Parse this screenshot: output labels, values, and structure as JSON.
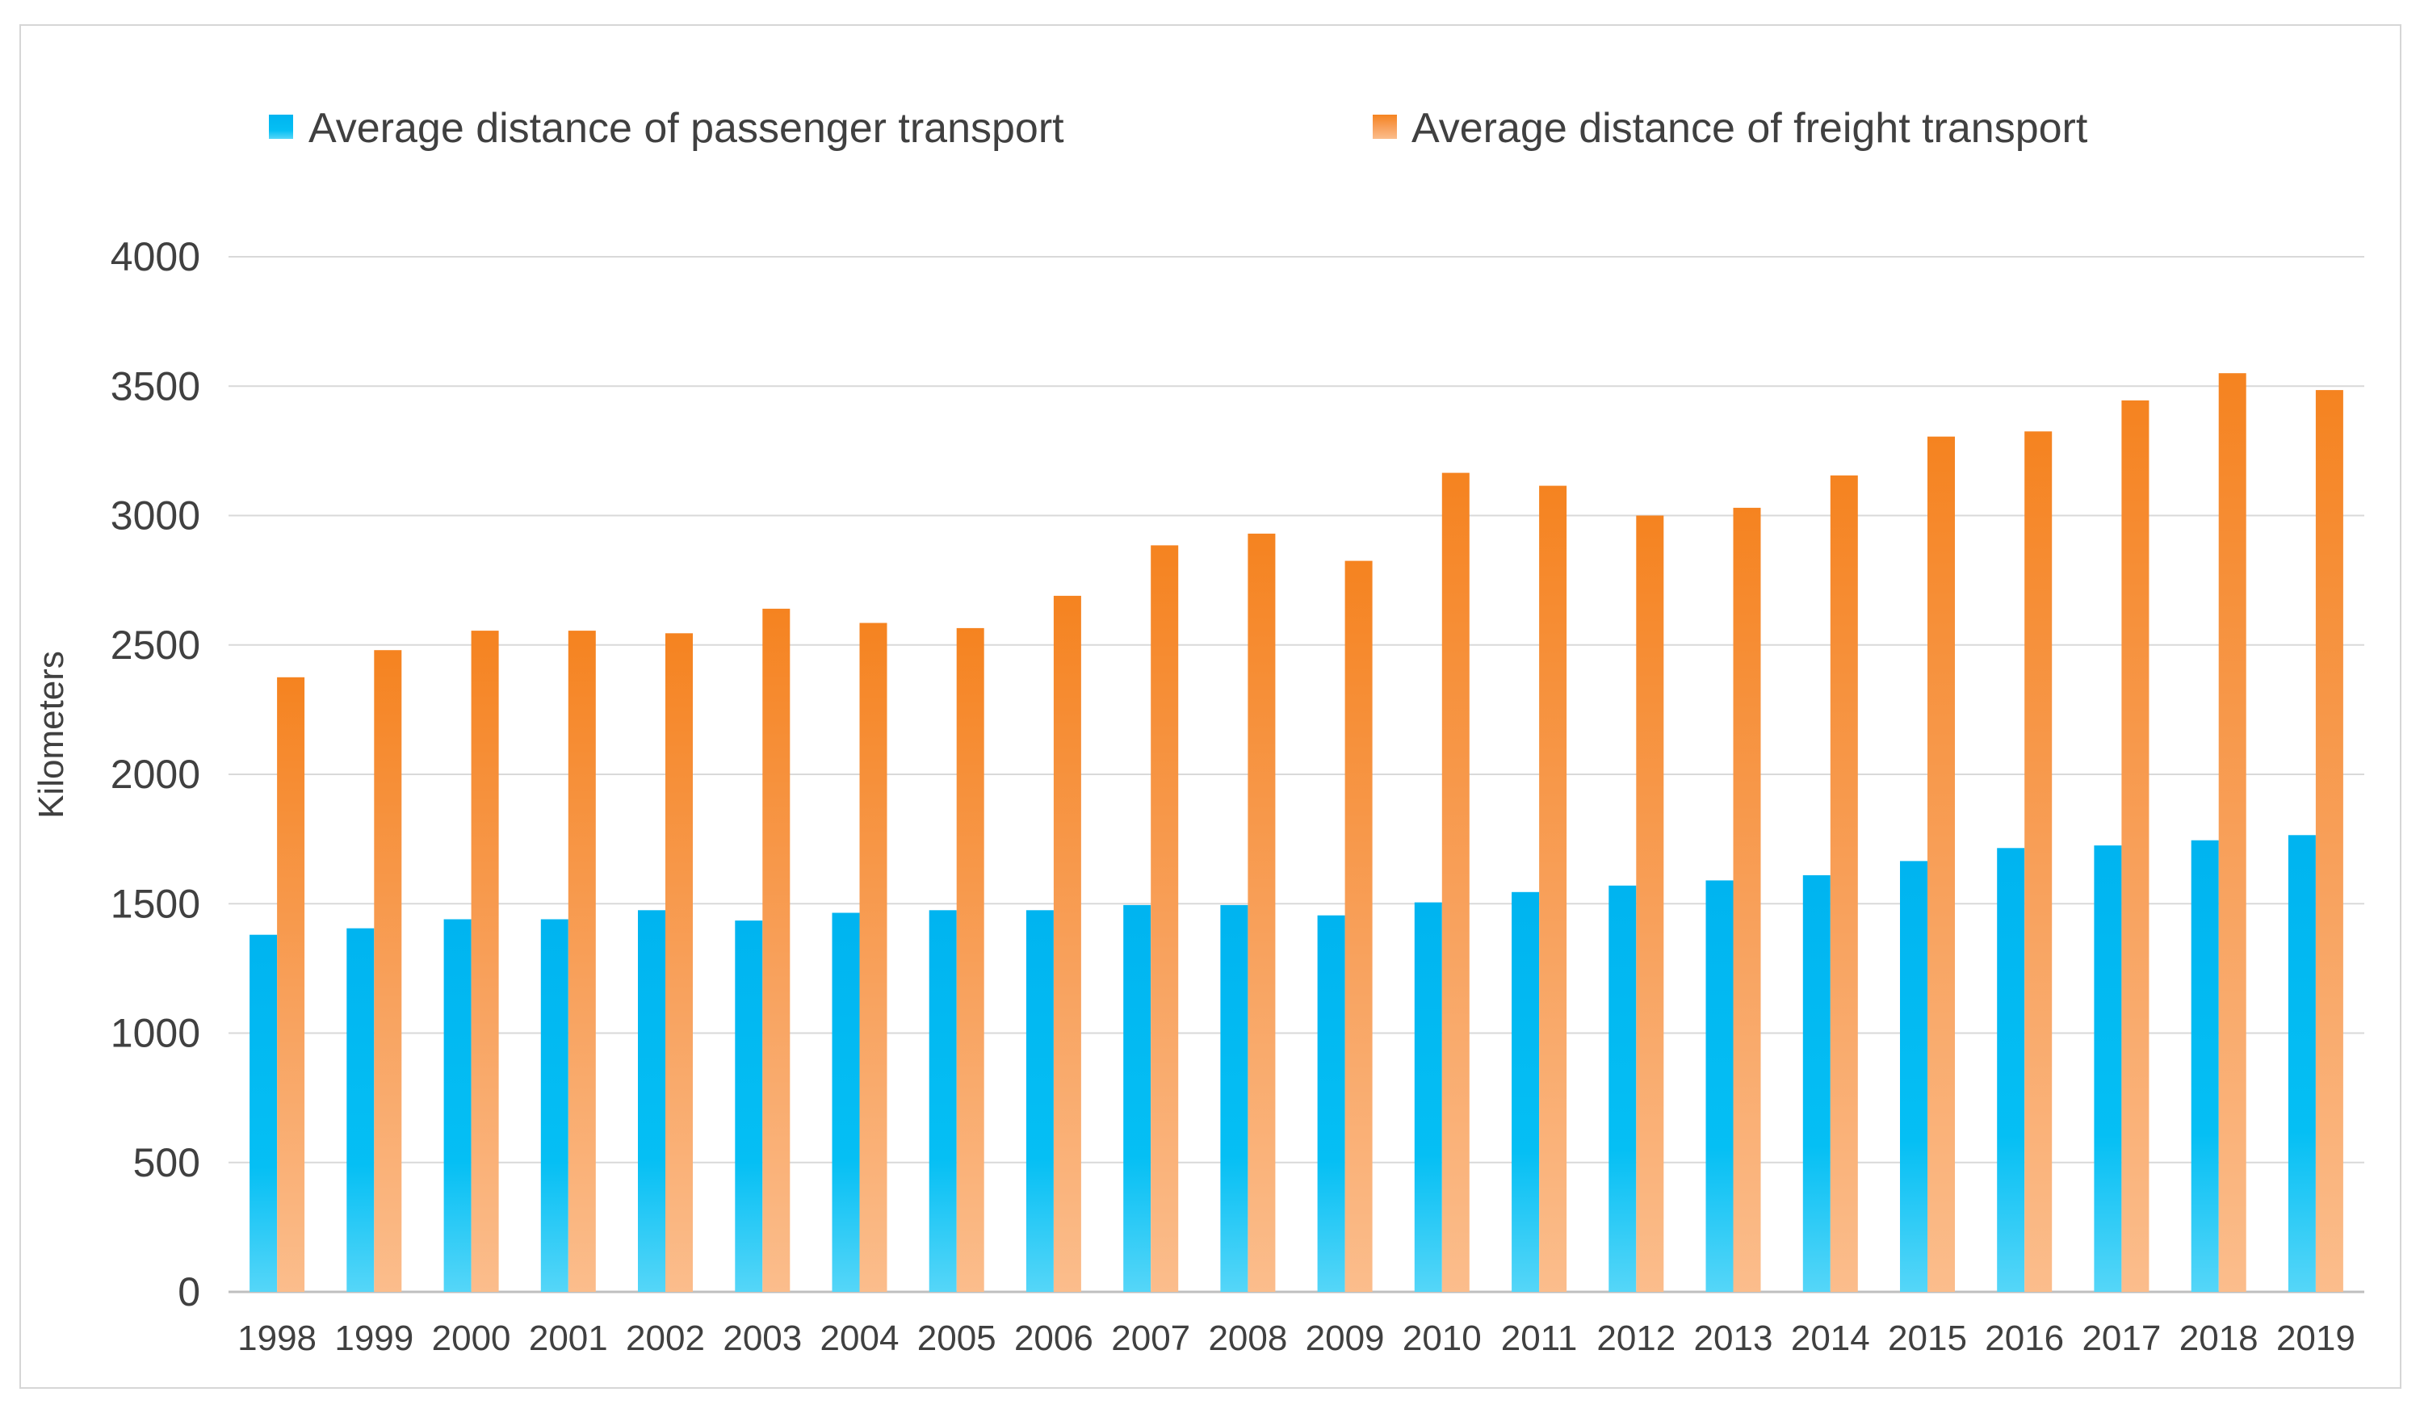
{
  "chart_data": {
    "type": "bar",
    "title": "",
    "xlabel": "",
    "ylabel": "Kilometers",
    "ylim": [
      0,
      4000
    ],
    "yticks": [
      "0",
      "500",
      "1000",
      "1500",
      "2000",
      "2500",
      "3000",
      "3500",
      "4000"
    ],
    "grid": true,
    "legend_position": "top",
    "categories": [
      "1998",
      "1999",
      "2000",
      "2001",
      "2002",
      "2003",
      "2004",
      "2005",
      "2006",
      "2007",
      "2008",
      "2009",
      "2010",
      "2011",
      "2012",
      "2013",
      "2014",
      "2015",
      "2016",
      "2017",
      "2018",
      "2019"
    ],
    "series": [
      {
        "name": "Average distance of passenger transport",
        "color": "#00b4f0",
        "color_light": "#55d6f8",
        "values": [
          1380,
          1405,
          1440,
          1440,
          1475,
          1435,
          1465,
          1475,
          1475,
          1495,
          1495,
          1455,
          1505,
          1545,
          1570,
          1590,
          1610,
          1665,
          1715,
          1725,
          1745,
          1765
        ]
      },
      {
        "name": "Average distance of freight transport",
        "color": "#f58320",
        "color_light": "#fbbd8c",
        "values": [
          2375,
          2480,
          2555,
          2555,
          2545,
          2640,
          2585,
          2565,
          2690,
          2885,
          2930,
          2825,
          3165,
          3115,
          3000,
          3030,
          3155,
          3305,
          3325,
          3445,
          3550,
          3485
        ]
      }
    ]
  }
}
